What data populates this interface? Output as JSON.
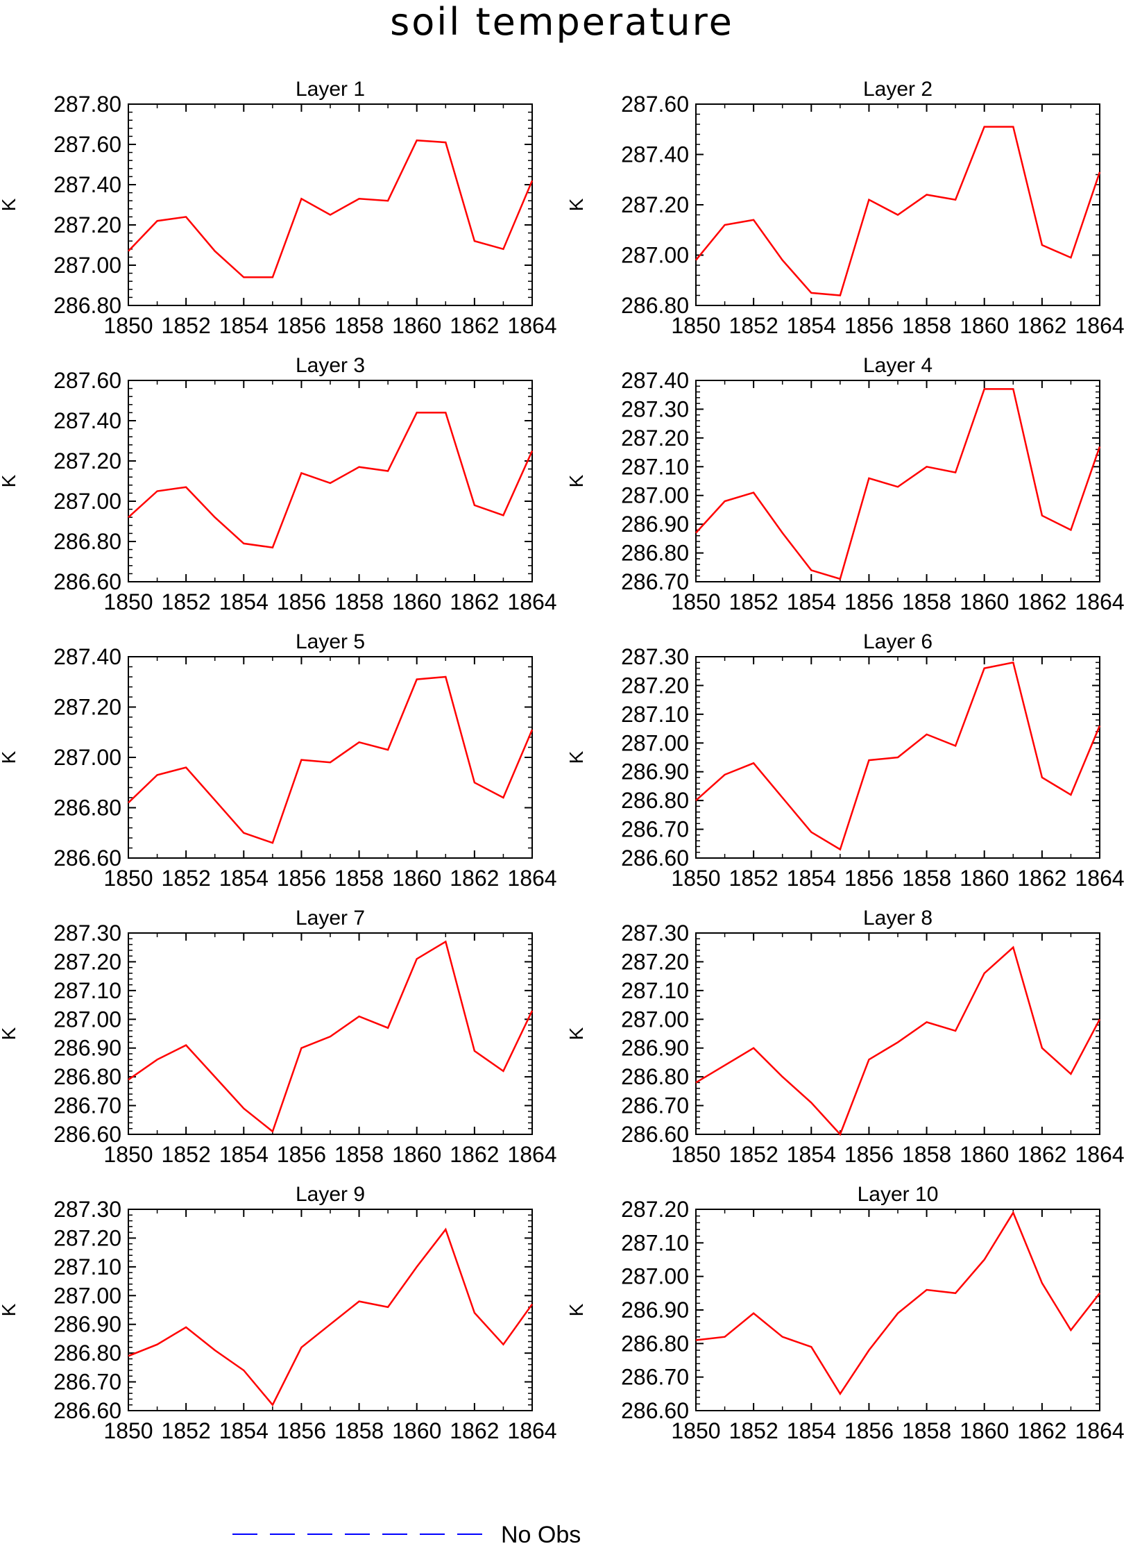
{
  "title": "soil temperature",
  "line_color": "#ff0000",
  "legend": {
    "label": "No Obs",
    "color": "#0000ff"
  },
  "chart_data": [
    {
      "type": "line",
      "title": "Layer 1",
      "ylabel": "K",
      "x_ticks": [
        "1850",
        "1852",
        "1854",
        "1856",
        "1858",
        "1860",
        "1862",
        "1864"
      ],
      "yticks": [
        "286.80",
        "287.00",
        "287.20",
        "287.40",
        "287.60",
        "287.80"
      ],
      "xlim": [
        1850,
        1864
      ],
      "ylim": [
        286.8,
        287.8
      ],
      "x": [
        1850,
        1851,
        1852,
        1853,
        1854,
        1855,
        1856,
        1857,
        1858,
        1859,
        1860,
        1861,
        1862,
        1863,
        1864
      ],
      "y": [
        287.07,
        287.22,
        287.24,
        287.07,
        286.94,
        286.94,
        287.33,
        287.25,
        287.33,
        287.32,
        287.62,
        287.61,
        287.12,
        287.08,
        287.42
      ]
    },
    {
      "type": "line",
      "title": "Layer 2",
      "ylabel": "K",
      "x_ticks": [
        "1850",
        "1852",
        "1854",
        "1856",
        "1858",
        "1860",
        "1862",
        "1864"
      ],
      "yticks": [
        "286.80",
        "287.00",
        "287.20",
        "287.40",
        "287.60"
      ],
      "xlim": [
        1850,
        1864
      ],
      "ylim": [
        286.8,
        287.6
      ],
      "x": [
        1850,
        1851,
        1852,
        1853,
        1854,
        1855,
        1856,
        1857,
        1858,
        1859,
        1860,
        1861,
        1862,
        1863,
        1864
      ],
      "y": [
        286.98,
        287.12,
        287.14,
        286.98,
        286.85,
        286.84,
        287.22,
        287.16,
        287.24,
        287.22,
        287.51,
        287.51,
        287.04,
        286.99,
        287.33
      ]
    },
    {
      "type": "line",
      "title": "Layer 3",
      "ylabel": "K",
      "x_ticks": [
        "1850",
        "1852",
        "1854",
        "1856",
        "1858",
        "1860",
        "1862",
        "1864"
      ],
      "yticks": [
        "286.60",
        "286.80",
        "287.00",
        "287.20",
        "287.40",
        "287.60"
      ],
      "xlim": [
        1850,
        1864
      ],
      "ylim": [
        286.6,
        287.6
      ],
      "x": [
        1850,
        1851,
        1852,
        1853,
        1854,
        1855,
        1856,
        1857,
        1858,
        1859,
        1860,
        1861,
        1862,
        1863,
        1864
      ],
      "y": [
        286.92,
        287.05,
        287.07,
        286.92,
        286.79,
        286.77,
        287.14,
        287.09,
        287.17,
        287.15,
        287.44,
        287.44,
        286.98,
        286.93,
        287.25
      ]
    },
    {
      "type": "line",
      "title": "Layer 4",
      "ylabel": "K",
      "x_ticks": [
        "1850",
        "1852",
        "1854",
        "1856",
        "1858",
        "1860",
        "1862",
        "1864"
      ],
      "yticks": [
        "286.70",
        "286.80",
        "286.90",
        "287.00",
        "287.10",
        "287.20",
        "287.30",
        "287.40"
      ],
      "xlim": [
        1850,
        1864
      ],
      "ylim": [
        286.7,
        287.4
      ],
      "x": [
        1850,
        1851,
        1852,
        1853,
        1854,
        1855,
        1856,
        1857,
        1858,
        1859,
        1860,
        1861,
        1862,
        1863,
        1864
      ],
      "y": [
        286.87,
        286.98,
        287.01,
        286.87,
        286.74,
        286.71,
        287.06,
        287.03,
        287.1,
        287.08,
        287.37,
        287.37,
        286.93,
        286.88,
        287.17
      ]
    },
    {
      "type": "line",
      "title": "Layer 5",
      "ylabel": "K",
      "x_ticks": [
        "1850",
        "1852",
        "1854",
        "1856",
        "1858",
        "1860",
        "1862",
        "1864"
      ],
      "yticks": [
        "286.60",
        "286.80",
        "287.00",
        "287.20",
        "287.40"
      ],
      "xlim": [
        1850,
        1864
      ],
      "ylim": [
        286.6,
        287.4
      ],
      "x": [
        1850,
        1851,
        1852,
        1853,
        1854,
        1855,
        1856,
        1857,
        1858,
        1859,
        1860,
        1861,
        1862,
        1863,
        1864
      ],
      "y": [
        286.82,
        286.93,
        286.96,
        286.83,
        286.7,
        286.66,
        286.99,
        286.98,
        287.06,
        287.03,
        287.31,
        287.32,
        286.9,
        286.84,
        287.11
      ]
    },
    {
      "type": "line",
      "title": "Layer 6",
      "ylabel": "K",
      "x_ticks": [
        "1850",
        "1852",
        "1854",
        "1856",
        "1858",
        "1860",
        "1862",
        "1864"
      ],
      "yticks": [
        "286.60",
        "286.70",
        "286.80",
        "286.90",
        "287.00",
        "287.10",
        "287.20",
        "287.30"
      ],
      "xlim": [
        1850,
        1864
      ],
      "ylim": [
        286.6,
        287.3
      ],
      "x": [
        1850,
        1851,
        1852,
        1853,
        1854,
        1855,
        1856,
        1857,
        1858,
        1859,
        1860,
        1861,
        1862,
        1863,
        1864
      ],
      "y": [
        286.8,
        286.89,
        286.93,
        286.81,
        286.69,
        286.63,
        286.94,
        286.95,
        287.03,
        286.99,
        287.26,
        287.28,
        286.88,
        286.82,
        287.06
      ]
    },
    {
      "type": "line",
      "title": "Layer 7",
      "ylabel": "K",
      "x_ticks": [
        "1850",
        "1852",
        "1854",
        "1856",
        "1858",
        "1860",
        "1862",
        "1864"
      ],
      "yticks": [
        "286.60",
        "286.70",
        "286.80",
        "286.90",
        "287.00",
        "287.10",
        "287.20",
        "287.30"
      ],
      "xlim": [
        1850,
        1864
      ],
      "ylim": [
        286.6,
        287.3
      ],
      "x": [
        1850,
        1851,
        1852,
        1853,
        1854,
        1855,
        1856,
        1857,
        1858,
        1859,
        1860,
        1861,
        1862,
        1863,
        1864
      ],
      "y": [
        286.79,
        286.86,
        286.91,
        286.8,
        286.69,
        286.61,
        286.9,
        286.94,
        287.01,
        286.97,
        287.21,
        287.27,
        286.89,
        286.82,
        287.03
      ]
    },
    {
      "type": "line",
      "title": "Layer 8",
      "ylabel": "K",
      "x_ticks": [
        "1850",
        "1852",
        "1854",
        "1856",
        "1858",
        "1860",
        "1862",
        "1864"
      ],
      "yticks": [
        "286.60",
        "286.70",
        "286.80",
        "286.90",
        "287.00",
        "287.10",
        "287.20",
        "287.30"
      ],
      "xlim": [
        1850,
        1864
      ],
      "ylim": [
        286.6,
        287.3
      ],
      "x": [
        1850,
        1851,
        1852,
        1853,
        1854,
        1855,
        1856,
        1857,
        1858,
        1859,
        1860,
        1861,
        1862,
        1863,
        1864
      ],
      "y": [
        286.78,
        286.84,
        286.9,
        286.8,
        286.71,
        286.6,
        286.86,
        286.92,
        286.99,
        286.96,
        287.16,
        287.25,
        286.9,
        286.81,
        287.0
      ]
    },
    {
      "type": "line",
      "title": "Layer 9",
      "ylabel": "K",
      "x_ticks": [
        "1850",
        "1852",
        "1854",
        "1856",
        "1858",
        "1860",
        "1862",
        "1864"
      ],
      "yticks": [
        "286.60",
        "286.70",
        "286.80",
        "286.90",
        "287.00",
        "287.10",
        "287.20",
        "287.30"
      ],
      "xlim": [
        1850,
        1864
      ],
      "ylim": [
        286.6,
        287.3
      ],
      "x": [
        1850,
        1851,
        1852,
        1853,
        1854,
        1855,
        1856,
        1857,
        1858,
        1859,
        1860,
        1861,
        1862,
        1863,
        1864
      ],
      "y": [
        286.79,
        286.83,
        286.89,
        286.81,
        286.74,
        286.62,
        286.82,
        286.9,
        286.98,
        286.96,
        287.1,
        287.23,
        286.94,
        286.83,
        286.97
      ]
    },
    {
      "type": "line",
      "title": "Layer 10",
      "ylabel": "K",
      "x_ticks": [
        "1850",
        "1852",
        "1854",
        "1856",
        "1858",
        "1860",
        "1862",
        "1864"
      ],
      "yticks": [
        "286.60",
        "286.70",
        "286.80",
        "286.90",
        "287.00",
        "287.10",
        "287.20"
      ],
      "xlim": [
        1850,
        1864
      ],
      "ylim": [
        286.6,
        287.2
      ],
      "x": [
        1850,
        1851,
        1852,
        1853,
        1854,
        1855,
        1856,
        1857,
        1858,
        1859,
        1860,
        1861,
        1862,
        1863,
        1864
      ],
      "y": [
        286.81,
        286.82,
        286.89,
        286.82,
        286.79,
        286.65,
        286.78,
        286.89,
        286.96,
        286.95,
        287.05,
        287.19,
        286.98,
        286.84,
        286.95
      ]
    }
  ]
}
